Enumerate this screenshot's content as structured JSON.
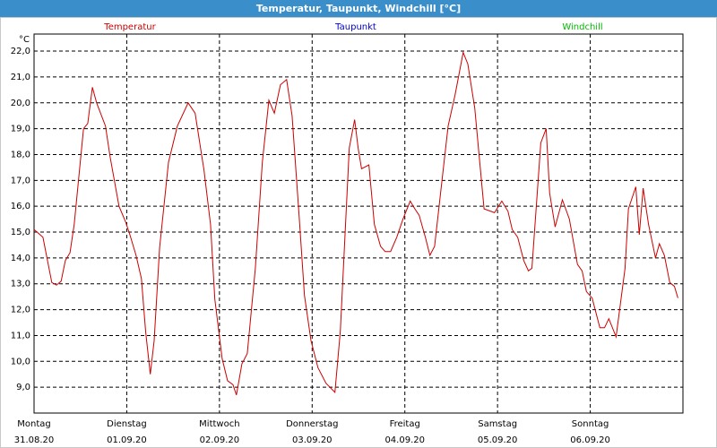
{
  "chart_data": {
    "type": "line",
    "title": "Temperatur, Taupunkt, Windchill [°C]",
    "y_label": "°C",
    "xlim": [
      0,
      168
    ],
    "xticks": [
      {
        "value": 0,
        "label": "Montag"
      },
      {
        "value": 24,
        "label": "Dienstag"
      },
      {
        "value": 48,
        "label": "Mittwoch"
      },
      {
        "value": 72,
        "label": "Donnerstag"
      },
      {
        "value": 96,
        "label": "Freitag"
      },
      {
        "value": 120,
        "label": "Samstag"
      },
      {
        "value": 144,
        "label": "Sonntag"
      }
    ],
    "xdates": [
      "31.08.20",
      "01.09.20",
      "02.09.20",
      "03.09.20",
      "04.09.20",
      "05.09.20",
      "06.09.20"
    ],
    "ylim": [
      8,
      22.66
    ],
    "yticks": [
      {
        "value": 9,
        "label": "9,0"
      },
      {
        "value": 10,
        "label": "10,0"
      },
      {
        "value": 11,
        "label": "11,0"
      },
      {
        "value": 12,
        "label": "12,0"
      },
      {
        "value": 13,
        "label": "13,0"
      },
      {
        "value": 14,
        "label": "14,0"
      },
      {
        "value": 15,
        "label": "15,0"
      },
      {
        "value": 16,
        "label": "16,0"
      },
      {
        "value": 17,
        "label": "17,0"
      },
      {
        "value": 18,
        "label": "18,0"
      },
      {
        "value": 19,
        "label": "19,0"
      },
      {
        "value": 20,
        "label": "20,0"
      },
      {
        "value": 21,
        "label": "21,0"
      },
      {
        "value": 22,
        "label": "22,0"
      }
    ],
    "grid": true,
    "series": [
      {
        "name": "Temperatur",
        "color": "#cc0000",
        "x": [
          0,
          2.3,
          4.6,
          5.8,
          7,
          8.1,
          9.3,
          10.4,
          12.8,
          13.9,
          15.1,
          16.2,
          18.5,
          19.7,
          22,
          23.7,
          24.8,
          26.4,
          27.8,
          28.9,
          30.1,
          31.1,
          32.5,
          34.8,
          37.1,
          39.9,
          41.7,
          44,
          45.7,
          46.8,
          48.7,
          50.1,
          51.5,
          52.4,
          53.8,
          55.2,
          57.3,
          59.1,
          60.8,
          62.2,
          63.8,
          65.4,
          66.8,
          68.6,
          70,
          71.7,
          73.5,
          75.6,
          77.9,
          79.3,
          81.6,
          83,
          83.9,
          84.8,
          86.7,
          88.1,
          89.7,
          90.9,
          92.3,
          93.9,
          95.5,
          97.4,
          98.6,
          99.7,
          101.3,
          102.5,
          103.7,
          104.8,
          107.2,
          109,
          111.1,
          112.3,
          114.1,
          116.5,
          118.3,
          119.2,
          121.1,
          122.7,
          123.8,
          125.2,
          126.8,
          128,
          128.9,
          131.2,
          132.6,
          133.5,
          134.9,
          136.8,
          138.6,
          140.7,
          141.9,
          143,
          144.5,
          146.5,
          147.7,
          148.8,
          150.7,
          153,
          153.9,
          155.8,
          156.7,
          157.7,
          159.1,
          160.9,
          161.9,
          163.2,
          164.6,
          165.8,
          166.7
        ],
        "values": [
          15.1,
          14.8,
          13.05,
          12.95,
          13.1,
          13.9,
          14.2,
          15.3,
          19.0,
          19.2,
          20.6,
          20.0,
          19.1,
          17.9,
          16.0,
          15.4,
          14.9,
          14.1,
          13.2,
          11.15,
          9.5,
          10.8,
          14.4,
          17.7,
          19.1,
          20.0,
          19.6,
          17.4,
          15.3,
          12.4,
          10.1,
          9.25,
          9.1,
          8.7,
          9.9,
          10.3,
          13.6,
          17.7,
          20.1,
          19.6,
          20.7,
          20.9,
          19.5,
          15.7,
          12.55,
          10.8,
          9.75,
          9.15,
          8.8,
          11.15,
          18.25,
          19.35,
          18.25,
          17.45,
          17.6,
          15.3,
          14.45,
          14.25,
          14.25,
          14.8,
          15.5,
          16.2,
          15.9,
          15.65,
          14.8,
          14.1,
          14.45,
          15.9,
          19.1,
          20.3,
          21.95,
          21.5,
          19.8,
          15.9,
          15.8,
          15.75,
          16.2,
          15.8,
          15.1,
          14.8,
          13.9,
          13.5,
          13.6,
          18.45,
          19.0,
          16.5,
          15.2,
          16.25,
          15.5,
          13.75,
          13.5,
          12.7,
          12.45,
          11.3,
          11.3,
          11.65,
          10.95,
          13.6,
          15.9,
          16.75,
          14.9,
          16.7,
          15.3,
          14.0,
          14.55,
          14.1,
          13.05,
          12.9,
          12.45
        ]
      },
      {
        "name": "Taupunkt",
        "color": "#0000cc",
        "x": [],
        "values": []
      },
      {
        "name": "Windchill",
        "color": "#00bb00",
        "x": [],
        "values": []
      }
    ]
  }
}
